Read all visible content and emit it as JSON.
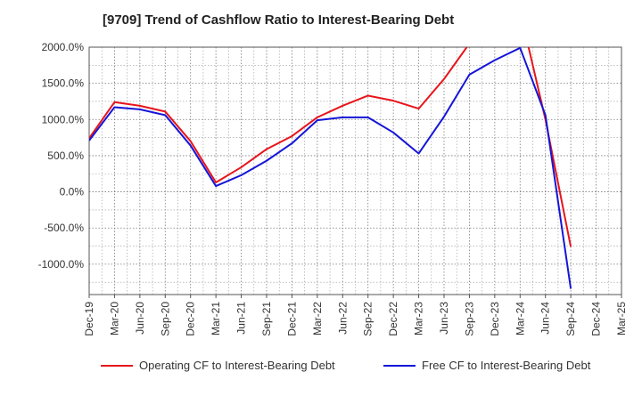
{
  "chart_data": {
    "type": "line",
    "title": "[9709]  Trend of Cashflow Ratio to Interest-Bearing Debt",
    "xlabel": "",
    "ylabel": "",
    "categories": [
      "Dec-19",
      "Mar-20",
      "Jun-20",
      "Sep-20",
      "Dec-20",
      "Mar-21",
      "Jun-21",
      "Sep-21",
      "Dec-21",
      "Mar-22",
      "Jun-22",
      "Sep-22",
      "Dec-22",
      "Mar-23",
      "Jun-23",
      "Sep-23",
      "Dec-23",
      "Mar-24",
      "Jun-24",
      "Sep-24",
      "Dec-24",
      "Mar-25"
    ],
    "y_ticks": [
      2000,
      1500,
      1000,
      500,
      0,
      -500,
      -1000
    ],
    "y_tick_labels": [
      "2000.0%",
      "1500.0%",
      "1000.0%",
      "500.0%",
      "0.0%",
      "-500.0%",
      "-1000.0%"
    ],
    "ylim": [
      -1420,
      2000
    ],
    "grid": true,
    "legend_position": "bottom",
    "series": [
      {
        "name": "Operating CF to Interest-Bearing Debt",
        "color": "#e8141b",
        "values": [
          740,
          1240,
          1190,
          1110,
          700,
          130,
          340,
          590,
          770,
          1030,
          1190,
          1330,
          1260,
          1150,
          1560,
          2050,
          2350,
          2500,
          1000,
          -760,
          null,
          null
        ]
      },
      {
        "name": "Free CF to Interest-Bearing Debt",
        "color": "#1515d8",
        "values": [
          710,
          1170,
          1140,
          1060,
          640,
          80,
          230,
          430,
          670,
          990,
          1030,
          1030,
          820,
          530,
          1040,
          1620,
          1820,
          1990,
          1060,
          -1340,
          null,
          null
        ]
      }
    ]
  }
}
